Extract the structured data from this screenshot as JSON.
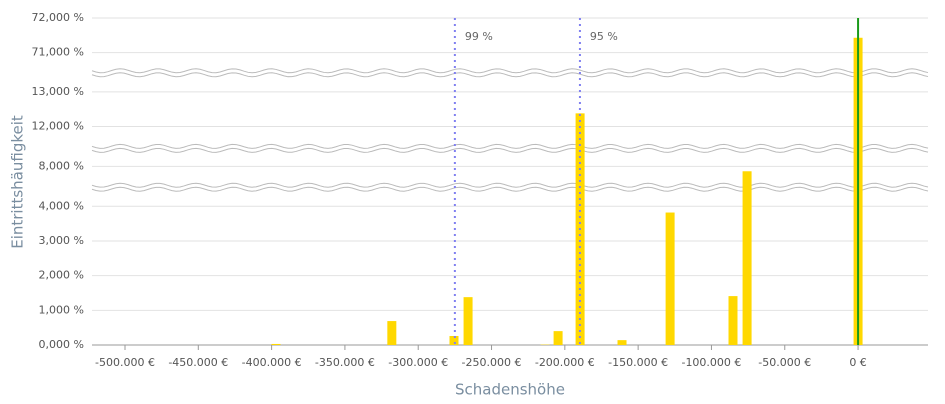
{
  "chart_data": {
    "type": "bar",
    "x_title": "Schadenshöhe",
    "y_title": "Eintrittshäufigkeit",
    "x": [
      -397000,
      -318000,
      -275600,
      -266000,
      -213500,
      -204600,
      -189600,
      -161000,
      -128200,
      -85300,
      -75700,
      0
    ],
    "values": [
      0.03,
      0.69,
      0.26,
      1.38,
      0.01,
      0.4,
      12.38,
      0.14,
      3.82,
      1.41,
      7.86,
      71.43
    ],
    "color": "#ffd800",
    "xlim": [
      -522500,
      47700
    ],
    "ylim": [
      0,
      72
    ],
    "ybreaks": [
      [
        4.55,
        7.4
      ],
      [
        8.52,
        11.37
      ],
      [
        13.55,
        70.42
      ]
    ],
    "xticks": [
      {
        "value": -500000,
        "label": "-500.000 €"
      },
      {
        "value": -450000,
        "label": "-450.000 €"
      },
      {
        "value": -400000,
        "label": "-400.000 €"
      },
      {
        "value": -350000,
        "label": "-350.000 €"
      },
      {
        "value": -300000,
        "label": "-300.000 €"
      },
      {
        "value": -250000,
        "label": "-250.000 €"
      },
      {
        "value": -200000,
        "label": "-200.000 €"
      },
      {
        "value": -150000,
        "label": "-150.000 €"
      },
      {
        "value": -100000,
        "label": "-100.000 €"
      },
      {
        "value": -50000,
        "label": "-50.000 €"
      },
      {
        "value": 0,
        "label": "0 €"
      }
    ],
    "yticks": [
      {
        "value": 0,
        "label": "0,000 %"
      },
      {
        "value": 1,
        "label": "1,000 %"
      },
      {
        "value": 2,
        "label": "2,000 %"
      },
      {
        "value": 3,
        "label": "3,000 %"
      },
      {
        "value": 4,
        "label": "4,000 %"
      },
      {
        "value": 8,
        "label": "8,000 %"
      },
      {
        "value": 12,
        "label": "12,000 %"
      },
      {
        "value": 13,
        "label": "13,000 %"
      },
      {
        "value": 71,
        "label": "71,000 %"
      },
      {
        "value": 72,
        "label": "72,000 %"
      }
    ],
    "grid": true,
    "reference_lines": [
      {
        "x": -275000,
        "label": "99 %",
        "color": "#8080f0"
      },
      {
        "x": -189700,
        "label": "95 %",
        "color": "#8080f0"
      }
    ],
    "marker_line": {
      "x": 0,
      "color": "#1a9a1a"
    }
  }
}
